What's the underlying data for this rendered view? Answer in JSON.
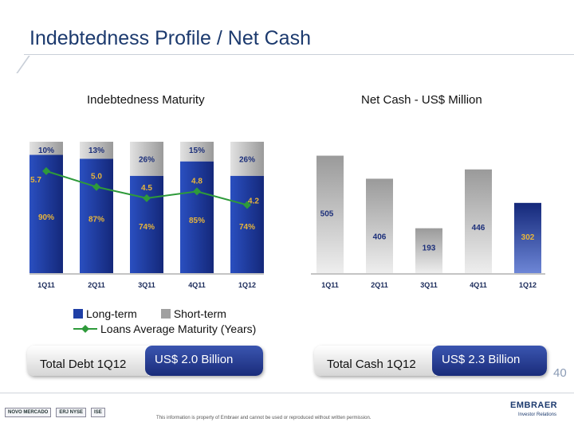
{
  "page": {
    "title": "Indebtedness Profile / Net Cash",
    "page_number": "40",
    "footnote": "This information is property of Embraer and cannot be used or reproduced without written permission.",
    "brand": "EMBRAER",
    "brand_sub": "Investor Relations",
    "logos": [
      "NOVO MERCADO",
      "ERJ NYSE",
      "ISE"
    ]
  },
  "colors": {
    "long_term": "#1f3fa6",
    "short_term": "#a0a0a0",
    "line": "#2e9a3a",
    "net_cash_bar": "#a8a8a8",
    "net_cash_highlight": "#223c9e"
  },
  "legend": {
    "long_term": "Long-term",
    "short_term": "Short-term",
    "avg_maturity": "Loans Average Maturity (Years)"
  },
  "summary": {
    "debt_label": "Total Debt 1Q12",
    "debt_value": "US$ 2.0 Billion",
    "cash_label": "Total Cash 1Q12",
    "cash_value": "US$ 2.3 Billion"
  },
  "chart_data": [
    {
      "type": "bar",
      "stacked": true,
      "title": "Indebtedness Maturity",
      "categories": [
        "1Q11",
        "2Q11",
        "3Q11",
        "4Q11",
        "1Q12"
      ],
      "series": [
        {
          "name": "Long-term",
          "values": [
            90,
            87,
            74,
            85,
            74
          ],
          "labels": [
            "90%",
            "87%",
            "74%",
            "85%",
            "74%"
          ]
        },
        {
          "name": "Short-term",
          "values": [
            10,
            13,
            26,
            15,
            26
          ],
          "labels": [
            "10%",
            "13%",
            "26%",
            "15%",
            "26%"
          ]
        }
      ],
      "line": {
        "name": "Loans Average Maturity (Years)",
        "values": [
          5.7,
          5.0,
          4.5,
          4.8,
          4.2
        ],
        "labels": [
          "5.7",
          "5.0",
          "4.5",
          "4.8",
          "4.2"
        ]
      },
      "ylim": [
        0,
        100
      ]
    },
    {
      "type": "bar",
      "title": "Net Cash - US$ Million",
      "categories": [
        "1Q11",
        "2Q11",
        "3Q11",
        "4Q11",
        "1Q12"
      ],
      "values": [
        505,
        406,
        193,
        446,
        302
      ],
      "labels": [
        "505",
        "406",
        "193",
        "446",
        "302"
      ],
      "highlight": "1Q12",
      "ylim": [
        0,
        600
      ]
    }
  ]
}
